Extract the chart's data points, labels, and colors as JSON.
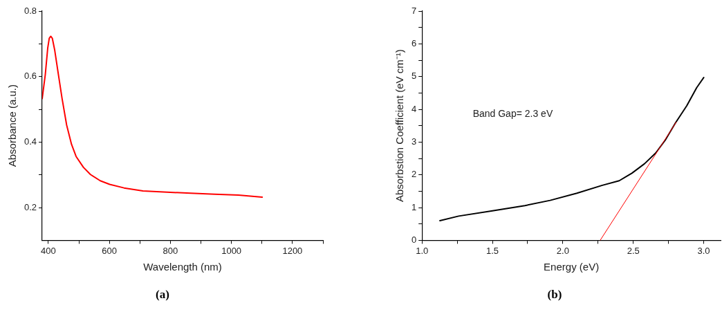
{
  "chart_data": [
    {
      "type": "line",
      "xlabel": "Wavelength (nm)",
      "ylabel": "Absorbance (a.u.)",
      "legend": false,
      "marker": "none",
      "xlim": [
        380,
        1300
      ],
      "xticks": [
        400,
        {
          "value": 500,
          "label": null
        },
        600,
        {
          "value": 700,
          "label": null
        },
        800,
        {
          "value": 900,
          "label": null
        },
        1000,
        {
          "value": 1100,
          "label": null
        },
        1200,
        {
          "value": 1300,
          "label": null
        }
      ],
      "ylim": [
        0.1,
        0.8
      ],
      "yticks": [
        0.2,
        {
          "value": 0.3,
          "label": null
        },
        0.4,
        {
          "value": 0.5,
          "label": null
        },
        0.6,
        {
          "value": 0.7,
          "label": null
        },
        0.8
      ],
      "series": [
        {
          "color": "#ff0000",
          "x": [
            380,
            390,
            398,
            403,
            408,
            413,
            421,
            433,
            445,
            460,
            476,
            491,
            515,
            538,
            570,
            601,
            648,
            710,
            788,
            866,
            945,
            1023,
            1101
          ],
          "values": [
            0.533,
            0.606,
            0.687,
            0.717,
            0.723,
            0.717,
            0.68,
            0.606,
            0.533,
            0.452,
            0.393,
            0.356,
            0.323,
            0.301,
            0.282,
            0.271,
            0.26,
            0.251,
            0.247,
            0.244,
            0.241,
            0.238,
            0.232
          ]
        }
      ],
      "annotations": [
        "(a)"
      ]
    },
    {
      "type": "line",
      "xlabel": "Energy (eV)",
      "ylabel": "Absorbstion Coefficient (eV cm⁻¹)",
      "legend": false,
      "marker": "none",
      "xlim": [
        1.0,
        3.12
      ],
      "xticks": [
        {
          "value": 1.0,
          "label": "1.0"
        },
        {
          "value": 1.25,
          "label": null
        },
        1.5,
        {
          "value": 1.75,
          "label": null
        },
        {
          "value": 2.0,
          "label": "2.0"
        },
        {
          "value": 2.25,
          "label": null
        },
        2.5,
        {
          "value": 2.75,
          "label": null
        },
        {
          "value": 3.0,
          "label": "3.0"
        }
      ],
      "ylim": [
        0,
        7
      ],
      "yticks": [
        0,
        {
          "value": 0.5,
          "label": null
        },
        1,
        {
          "value": 1.5,
          "label": null
        },
        2,
        {
          "value": 2.5,
          "label": null
        },
        3,
        {
          "value": 3.5,
          "label": null
        },
        4,
        {
          "value": 4.5,
          "label": null
        },
        5,
        {
          "value": 5.5,
          "label": null
        },
        6,
        {
          "value": 6.5,
          "label": null
        },
        7
      ],
      "series": [
        {
          "color": "#000000",
          "x": [
            1.127,
            1.26,
            1.5,
            1.73,
            1.91,
            2.1,
            2.28,
            2.4,
            2.49,
            2.58,
            2.66,
            2.73,
            2.8,
            2.88,
            2.95,
            3.0
          ],
          "values": [
            0.6,
            0.74,
            0.9,
            1.06,
            1.22,
            1.44,
            1.68,
            1.82,
            2.05,
            2.34,
            2.67,
            3.08,
            3.59,
            4.11,
            4.66,
            4.97
          ]
        },
        {
          "color": "#ff0000",
          "x": [
            2.265,
            2.805
          ],
          "values": [
            0,
            3.61
          ]
        }
      ],
      "annotations": [
        "Band Gap= 2.3 eV",
        "(b)"
      ]
    }
  ]
}
